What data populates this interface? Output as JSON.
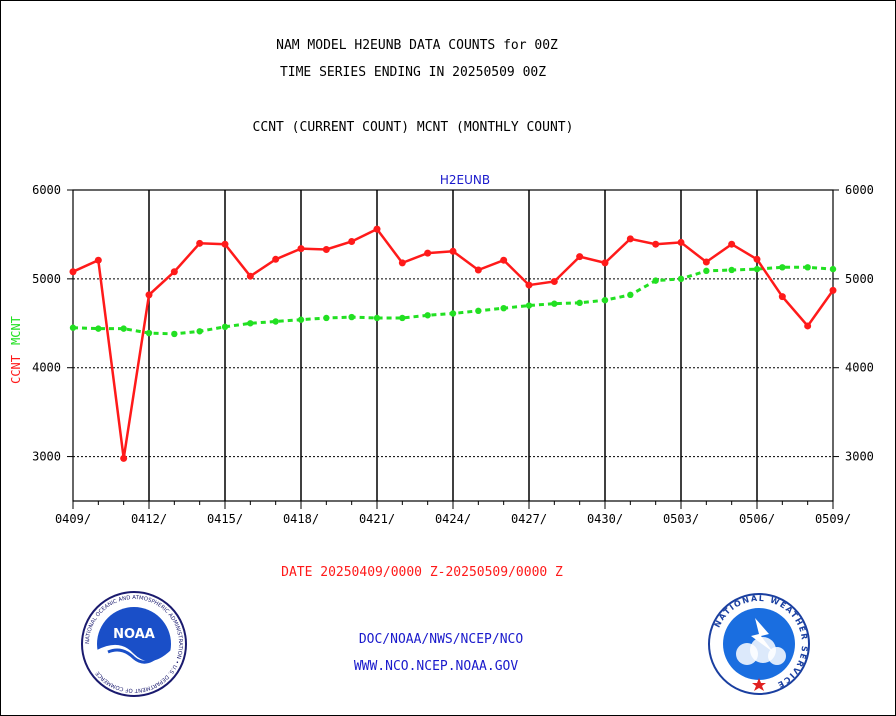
{
  "header": {
    "title_line1": "NAM MODEL H2EUNB DATA COUNTS for 00Z",
    "title_line2": "TIME SERIES ENDING IN 20250509 00Z",
    "subtitle": "CCNT (CURRENT COUNT) MCNT (MONTHLY COUNT)"
  },
  "footer": {
    "date_range": "DATE 20250409/0000 Z-20250509/0000 Z",
    "org_line": "DOC/NOAA/NWS/NCEP/NCO",
    "url_line": "WWW.NCO.NCEP.NOAA.GOV"
  },
  "logos": {
    "noaa_text": "NOAA",
    "noaa_ring": "NATIONAL OCEANIC AND ATMOSPHERIC ADMINISTRATION • U.S. DEPARTMENT OF COMMERCE",
    "nws_ring": "NATIONAL WEATHER SERVICE"
  },
  "chart_data": {
    "type": "line",
    "plot_label": "H2EUNB",
    "ylabel_left": "CCNT",
    "ylabel_right": "MCNT",
    "ylim": [
      2500,
      6000
    ],
    "y_ticks": [
      3000,
      4000,
      5000,
      6000
    ],
    "x_tick_labels": [
      "0409/",
      "0412/",
      "0415/",
      "0418/",
      "0421/",
      "0424/",
      "0427/",
      "0430/",
      "0503/",
      "0506/",
      "0509/"
    ],
    "grid": true,
    "colors": {
      "ccnt": "#ff1a1a",
      "mcnt": "#22e022",
      "label_blue": "#1a1acc"
    },
    "series": [
      {
        "name": "CCNT",
        "values": [
          5080,
          5210,
          2980,
          4820,
          5080,
          5400,
          5390,
          5030,
          5220,
          5340,
          5330,
          5420,
          5560,
          5180,
          5290,
          5310,
          5100,
          5210,
          4930,
          4970,
          5250,
          5180,
          5450,
          5390,
          5410,
          5190,
          5390,
          5220,
          4800,
          4470,
          4870
        ]
      },
      {
        "name": "MCNT",
        "values": [
          4450,
          4440,
          4440,
          4390,
          4380,
          4410,
          4460,
          4500,
          4520,
          4540,
          4560,
          4570,
          4560,
          4560,
          4590,
          4610,
          4640,
          4670,
          4700,
          4720,
          4730,
          4760,
          4820,
          4980,
          5000,
          5090,
          5100,
          5110,
          5130,
          5130,
          5110
        ]
      }
    ]
  }
}
